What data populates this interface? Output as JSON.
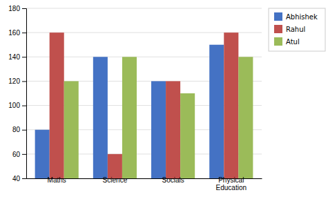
{
  "chart_data": {
    "type": "bar",
    "categories": [
      "Maths",
      "Science",
      "Socials",
      "Physical\nEducation"
    ],
    "series": [
      {
        "name": "Abhishek",
        "color": "#4472C4",
        "values": [
          80,
          140,
          120,
          150
        ]
      },
      {
        "name": "Rahul",
        "color": "#C0504D",
        "values": [
          160,
          60,
          120,
          160
        ]
      },
      {
        "name": "Atul",
        "color": "#9BBB59",
        "values": [
          120,
          140,
          110,
          140
        ]
      }
    ],
    "ylim": [
      40,
      180
    ],
    "yticks": [
      40,
      60,
      80,
      100,
      120,
      140,
      160,
      180
    ],
    "grid": true,
    "legend": "upper right"
  }
}
